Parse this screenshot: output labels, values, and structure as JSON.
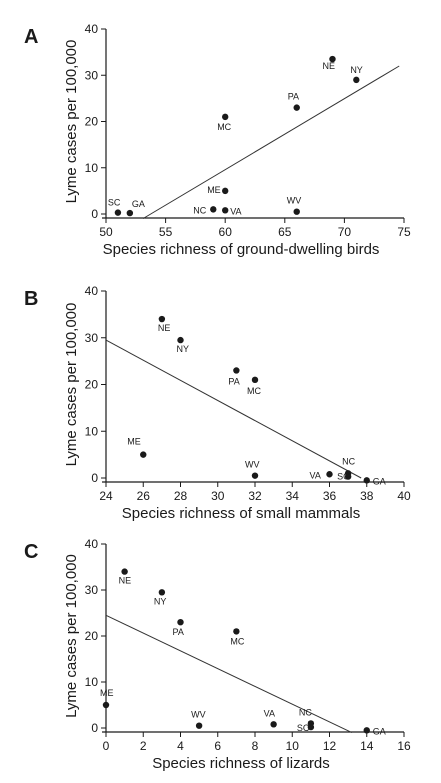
{
  "chart_data": [
    {
      "type": "scatter",
      "panel": "A",
      "xlabel": "Species richness of ground-dwelling birds",
      "ylabel": "Lyme cases per 100,000",
      "xlim": [
        50,
        75
      ],
      "ylim": [
        0,
        40
      ],
      "xticks": [
        50,
        55,
        60,
        65,
        70,
        75
      ],
      "yticks": [
        0,
        10,
        20,
        30,
        40
      ],
      "points": [
        {
          "label": "NE",
          "x": 69,
          "y": 33.5
        },
        {
          "label": "NY",
          "x": 71,
          "y": 29
        },
        {
          "label": "PA",
          "x": 66,
          "y": 23
        },
        {
          "label": "MC",
          "x": 60,
          "y": 21
        },
        {
          "label": "ME",
          "x": 60,
          "y": 5
        },
        {
          "label": "NC",
          "x": 59,
          "y": 1
        },
        {
          "label": "VA",
          "x": 60,
          "y": 0.8
        },
        {
          "label": "WV",
          "x": 66,
          "y": 0.5
        },
        {
          "label": "SC",
          "x": 51,
          "y": 0.3
        },
        {
          "label": "GA",
          "x": 52,
          "y": 0.2
        }
      ],
      "trendline": {
        "x": [
          53.1,
          74.6
        ],
        "y": [
          -1,
          32
        ]
      }
    },
    {
      "type": "scatter",
      "panel": "B",
      "xlabel": "Species richness of small mammals",
      "ylabel": "Lyme cases per 100,000",
      "xlim": [
        24,
        40
      ],
      "ylim": [
        0,
        40
      ],
      "xticks": [
        24,
        26,
        28,
        30,
        32,
        34,
        36,
        38,
        40
      ],
      "yticks": [
        0,
        10,
        20,
        30,
        40
      ],
      "points": [
        {
          "label": "NE",
          "x": 27,
          "y": 34
        },
        {
          "label": "NY",
          "x": 28,
          "y": 29.5
        },
        {
          "label": "PA",
          "x": 31,
          "y": 23
        },
        {
          "label": "MC",
          "x": 32,
          "y": 21
        },
        {
          "label": "ME",
          "x": 26,
          "y": 5
        },
        {
          "label": "WV",
          "x": 32,
          "y": 0.5
        },
        {
          "label": "VA",
          "x": 36,
          "y": 0.8
        },
        {
          "label": "NC",
          "x": 37,
          "y": 1
        },
        {
          "label": "SC",
          "x": 37,
          "y": 0.3
        },
        {
          "label": "GA",
          "x": 38,
          "y": -0.5
        }
      ],
      "trendline": {
        "x": [
          24,
          37.7
        ],
        "y": [
          29.5,
          0
        ]
      }
    },
    {
      "type": "scatter",
      "panel": "C",
      "xlabel": "Species richness of lizards",
      "ylabel": "Lyme cases per 100,000",
      "xlim": [
        0,
        16
      ],
      "ylim": [
        0,
        40
      ],
      "xticks": [
        0,
        2,
        4,
        6,
        8,
        10,
        12,
        14,
        16
      ],
      "yticks": [
        0,
        10,
        20,
        30,
        40
      ],
      "points": [
        {
          "label": "NE",
          "x": 1,
          "y": 34
        },
        {
          "label": "NY",
          "x": 3,
          "y": 29.5
        },
        {
          "label": "PA",
          "x": 4,
          "y": 23
        },
        {
          "label": "MC",
          "x": 7,
          "y": 21
        },
        {
          "label": "ME",
          "x": 0,
          "y": 5
        },
        {
          "label": "WV",
          "x": 5,
          "y": 0.5
        },
        {
          "label": "VA",
          "x": 9,
          "y": 0.8
        },
        {
          "label": "NC",
          "x": 11,
          "y": 1
        },
        {
          "label": "SC",
          "x": 11,
          "y": 0.2
        },
        {
          "label": "GA",
          "x": 14,
          "y": -0.5
        }
      ],
      "trendline": {
        "x": [
          0,
          13.2
        ],
        "y": [
          24.5,
          -1
        ]
      }
    }
  ]
}
